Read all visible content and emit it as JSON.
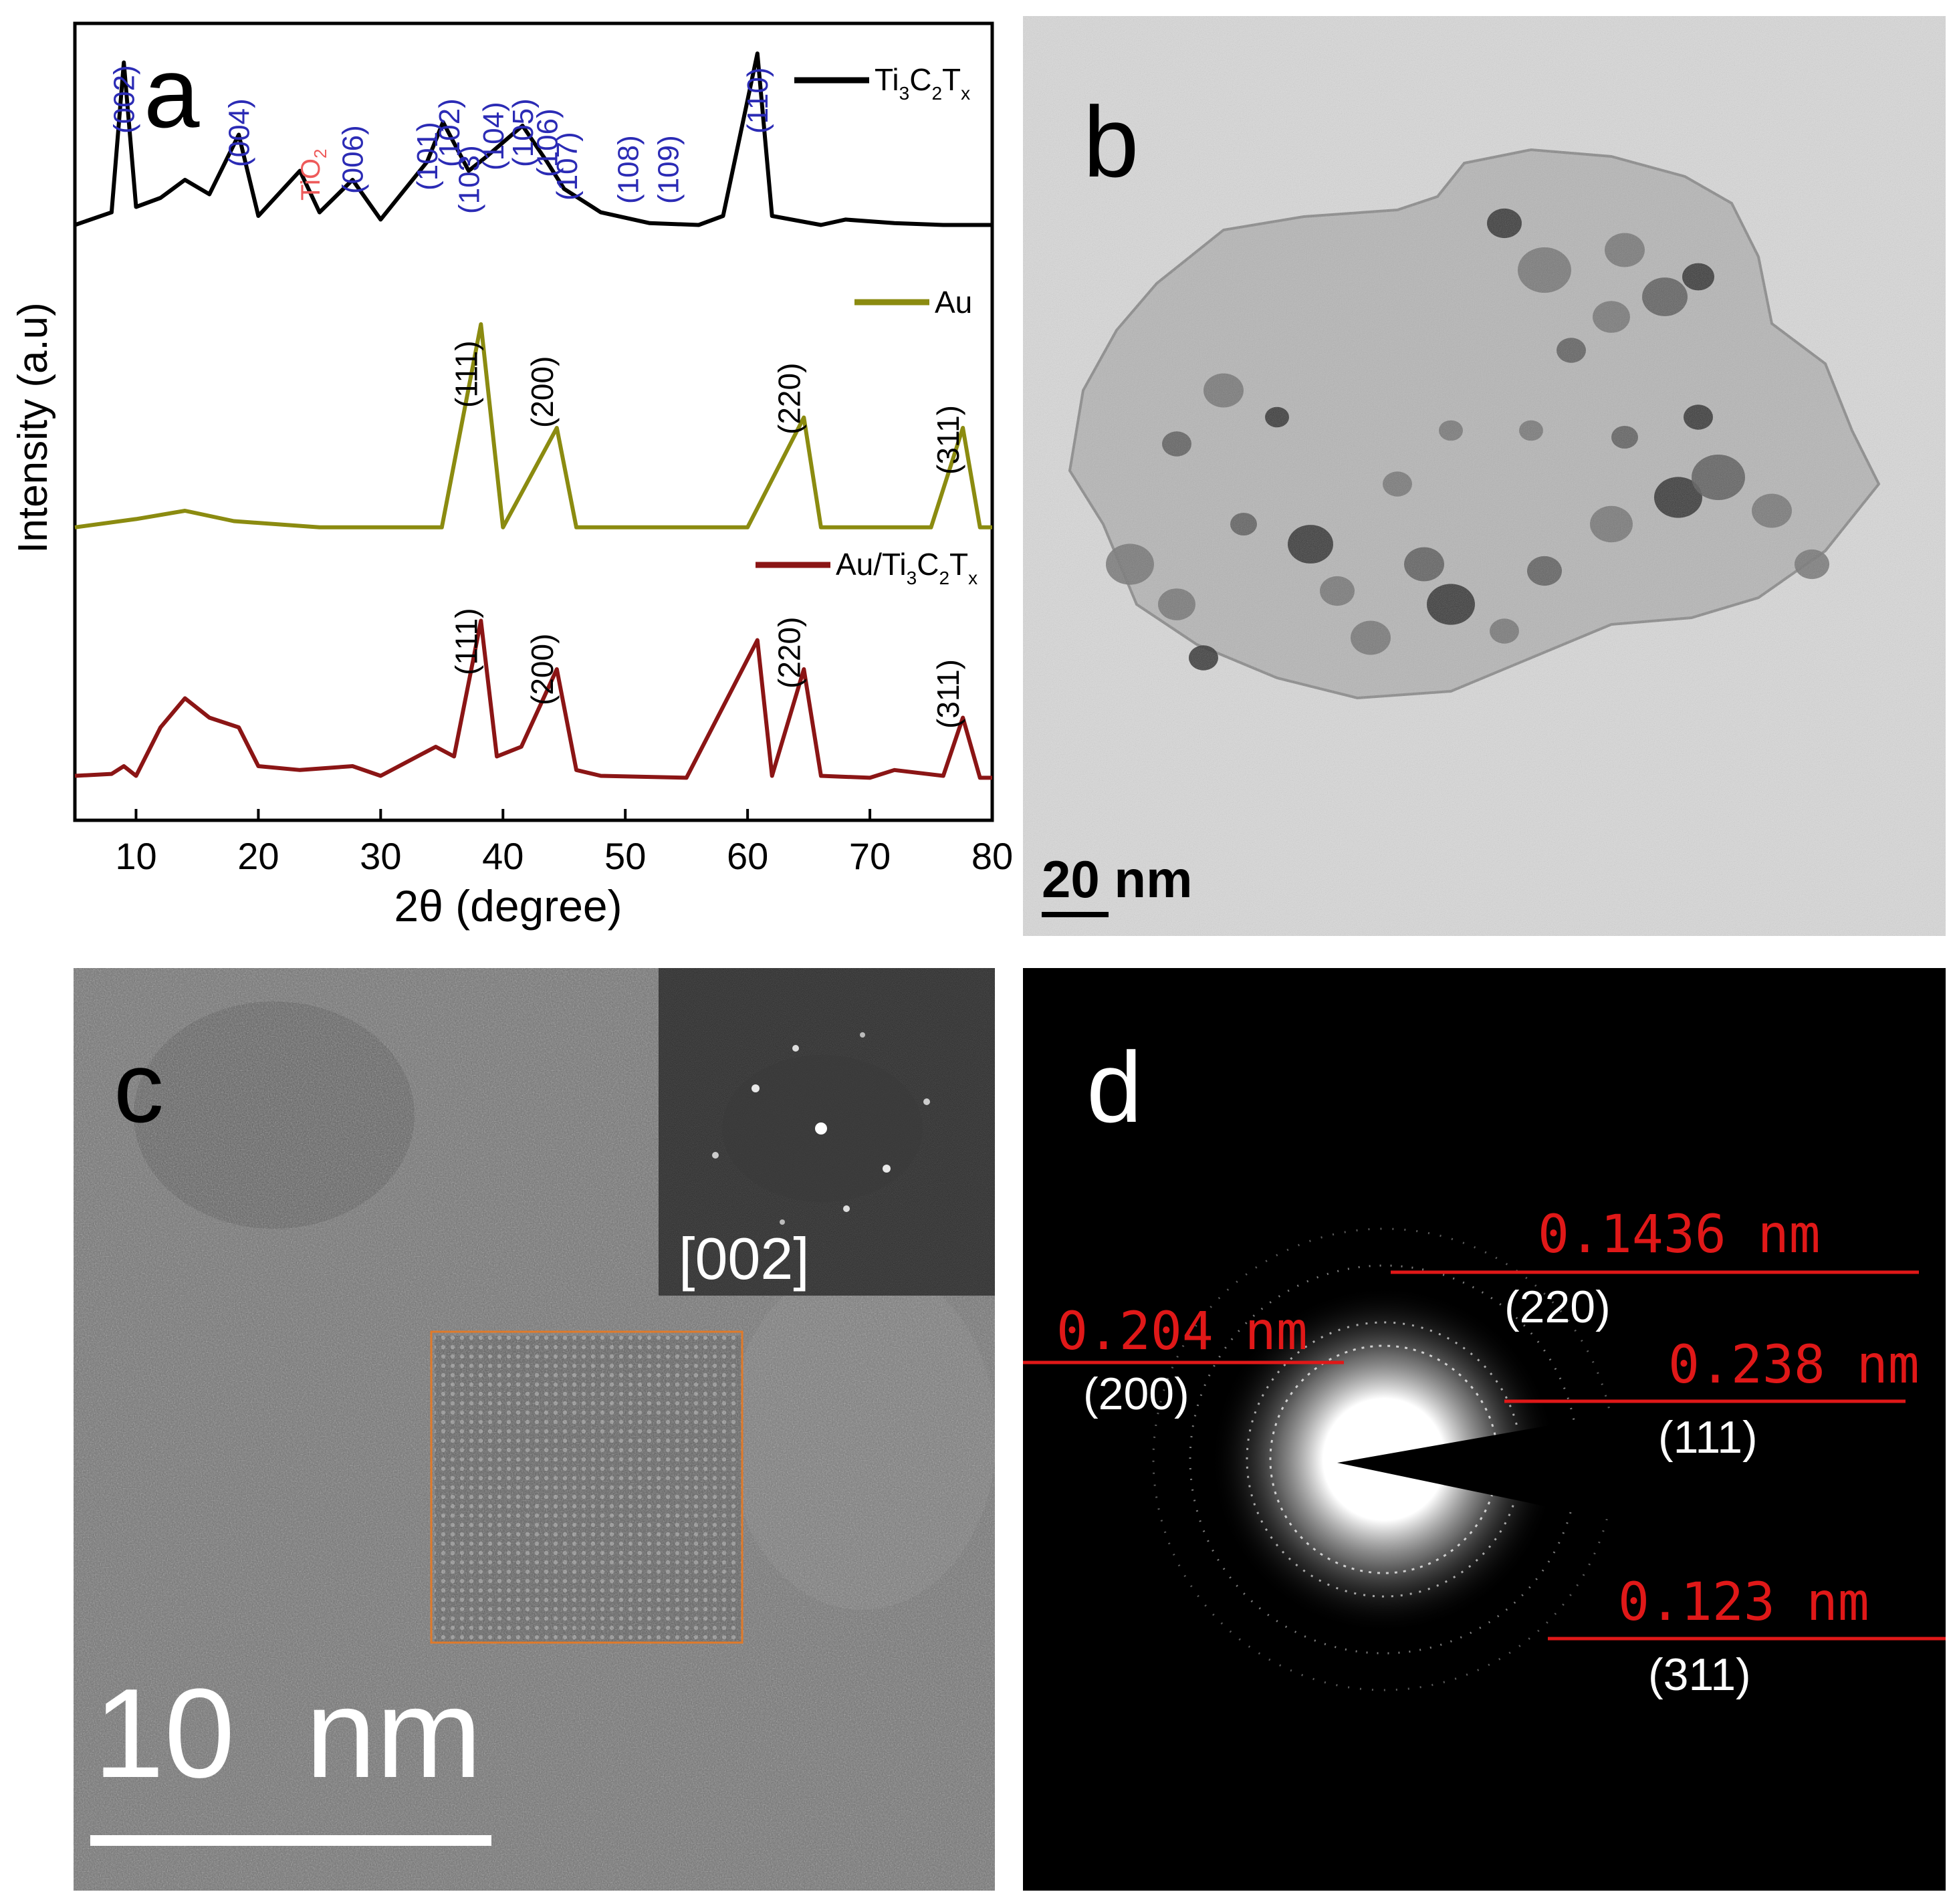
{
  "panel_a": {
    "letter": "a",
    "ylabel": "Intensity (a.u)",
    "xlabel": "2θ (degree)",
    "xticks": [
      "10",
      "20",
      "30",
      "40",
      "50",
      "60",
      "70",
      "80"
    ],
    "colors": {
      "ti3c2tx": "#000000",
      "au": "#8b8b10",
      "au_ti3c2tx": "#8b1515",
      "ti3c2tx_labels": "#2b2bb5",
      "tio2": "#ee5a5a"
    },
    "legend": {
      "ti3c2tx": {
        "main": "Ti",
        "s1": "3",
        "m2": "C",
        "s2": "2",
        "m3": "T",
        "s3": "x"
      },
      "au": "Au",
      "au_ti3c2tx": {
        "main": "Au/Ti",
        "s1": "3",
        "m2": "C",
        "s2": "2",
        "m3": "T",
        "s3": "x"
      }
    },
    "tio2_label": {
      "main": "TiO",
      "sub": "2"
    },
    "ti3c2tx_peaks": [
      {
        "label": "(002)",
        "x": 9.0
      },
      {
        "label": "(004)",
        "x": 18.4
      },
      {
        "label": "(006)",
        "x": 27.7
      },
      {
        "label": "(101)",
        "x": 33.8
      },
      {
        "label": "(102)",
        "x": 35.6
      },
      {
        "label": "(103)",
        "x": 37.2
      },
      {
        "label": "(104)",
        "x": 39.2
      },
      {
        "label": "(105)",
        "x": 41.6
      },
      {
        "label": "(106)",
        "x": 43.6
      },
      {
        "label": "(107)",
        "x": 45.2
      },
      {
        "label": "(108)",
        "x": 50.2
      },
      {
        "label": "(109)",
        "x": 53.5
      },
      {
        "label": "(110)",
        "x": 60.8
      }
    ],
    "au_peaks": [
      {
        "label": "(111)",
        "x": 38.2
      },
      {
        "label": "(200)",
        "x": 44.4
      },
      {
        "label": "(220)",
        "x": 64.6
      },
      {
        "label": "(311)",
        "x": 77.6
      }
    ],
    "au_ti3c2tx_peaks": [
      {
        "label": "(111)",
        "x": 38.2
      },
      {
        "label": "(200)",
        "x": 44.4
      },
      {
        "label": "(220)",
        "x": 64.6
      },
      {
        "label": "(311)",
        "x": 77.6
      }
    ]
  },
  "chart_data": {
    "type": "line",
    "xlabel": "2θ (degree)",
    "ylabel": "Intensity (a.u)",
    "xlim": [
      5,
      80
    ],
    "series": [
      {
        "name": "Ti3C2Tx",
        "x": [
          5,
          8,
          9,
          10,
          12,
          14,
          16,
          18.4,
          20,
          23.4,
          25,
          27.7,
          30,
          33.8,
          35.1,
          37.2,
          38.5,
          41.6,
          43.6,
          45,
          48,
          52,
          56,
          58,
          60.8,
          62,
          66,
          68,
          72,
          76,
          80
        ],
        "y": [
          0.05,
          0.12,
          0.95,
          0.15,
          0.2,
          0.3,
          0.22,
          0.55,
          0.1,
          0.35,
          0.12,
          0.3,
          0.08,
          0.4,
          0.62,
          0.35,
          0.42,
          0.6,
          0.4,
          0.25,
          0.12,
          0.06,
          0.05,
          0.1,
          1.0,
          0.1,
          0.05,
          0.08,
          0.06,
          0.05,
          0.05
        ]
      },
      {
        "name": "Au",
        "x": [
          5,
          10,
          14,
          18,
          25,
          35,
          38.2,
          40,
          44.4,
          46,
          60,
          64.6,
          66,
          75,
          77.6,
          79,
          80
        ],
        "y": [
          0.02,
          0.06,
          0.1,
          0.05,
          0.02,
          0.02,
          1.0,
          0.02,
          0.5,
          0.02,
          0.02,
          0.55,
          0.02,
          0.02,
          0.5,
          0.02,
          0.02
        ]
      },
      {
        "name": "Au/Ti3C2Tx",
        "x": [
          5,
          8,
          9,
          10,
          12,
          14,
          16,
          18.4,
          20,
          23.4,
          27.7,
          30,
          34.5,
          36,
          38.2,
          39.5,
          41.5,
          44.4,
          46,
          48,
          55,
          60.8,
          62,
          64.6,
          66,
          70,
          72,
          76,
          77.6,
          79,
          80
        ],
        "y": [
          0.05,
          0.06,
          0.1,
          0.05,
          0.3,
          0.45,
          0.35,
          0.3,
          0.1,
          0.08,
          0.1,
          0.05,
          0.2,
          0.15,
          0.85,
          0.15,
          0.2,
          0.6,
          0.08,
          0.05,
          0.04,
          0.75,
          0.05,
          0.6,
          0.05,
          0.04,
          0.08,
          0.05,
          0.35,
          0.04,
          0.04
        ]
      }
    ]
  },
  "panel_b": {
    "letter": "b",
    "scale_bar": "20 nm"
  },
  "panel_c": {
    "letter": "c",
    "scale_bar": "10  nm",
    "inset_label": "[002]"
  },
  "panel_d": {
    "letter": "d",
    "rings": [
      {
        "spacing": "0.1436 nm",
        "hkl": "(220)"
      },
      {
        "spacing": "0.204 nm",
        "hkl": "(200)"
      },
      {
        "spacing": "0.238 nm",
        "hkl": "(111)"
      },
      {
        "spacing": "0.123 nm",
        "hkl": "(311)"
      }
    ],
    "spacing_color": "#e01818",
    "hkl_color": "#ffffff"
  }
}
